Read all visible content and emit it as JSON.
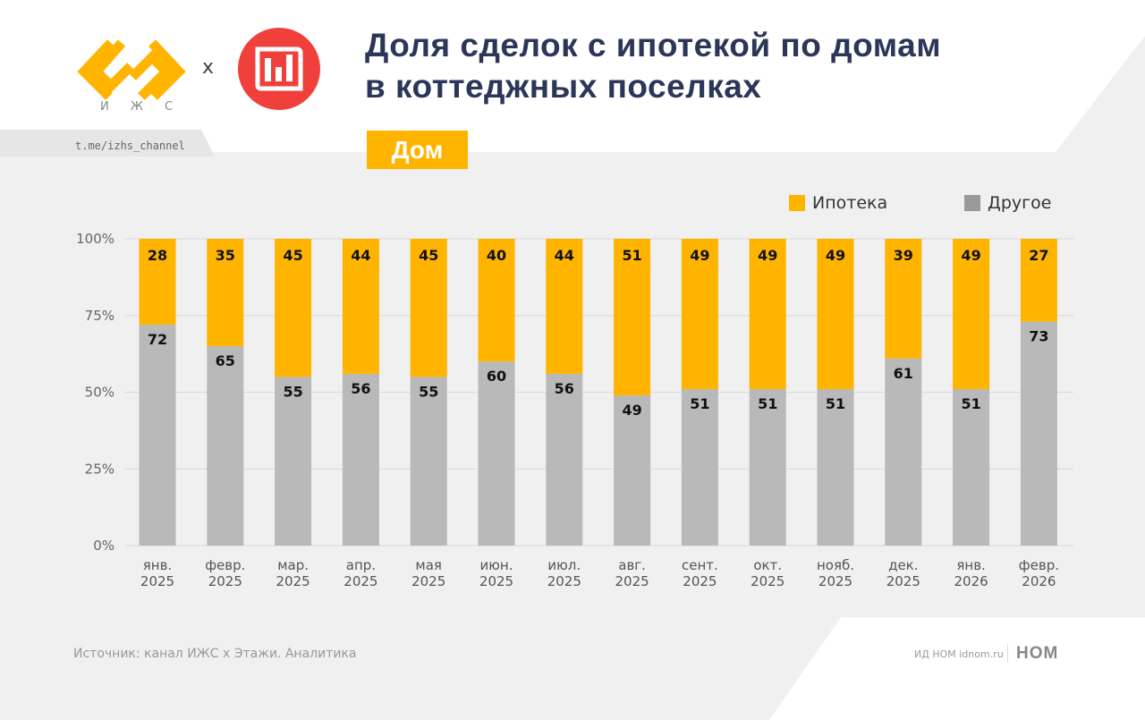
{
  "header": {
    "title_line1": "Доля сделок с ипотекой по домам",
    "title_line2": "в коттеджных поселках",
    "badge": "Дом",
    "channel_link": "t.me/izhs_channel",
    "logo_izhs_label": "И Ж С",
    "logo_separator": "x",
    "logo_izhs_icon": "izhs-logo-icon",
    "logo_partner_icon": "etazhi-analytics-logo-icon"
  },
  "colors": {
    "mortgage": "#ffb400",
    "other": "#b9b9b9",
    "title": "#2b3659",
    "partner_logo": "#f0403c"
  },
  "footer": {
    "source": "Источник: канал ИЖС х Этажи. Аналитика",
    "publisher": "ИД НОМ idnom.ru",
    "publisher_logo": "НОМ"
  },
  "chart_data": {
    "type": "bar",
    "stacked": true,
    "title": "Доля сделок с ипотекой по домам в коттеджных поселках",
    "xlabel": "",
    "ylabel": "",
    "ylim": [
      0,
      100
    ],
    "yticks": [
      "0%",
      "25%",
      "50%",
      "75%",
      "100%"
    ],
    "grid": true,
    "legend_position": "top-right",
    "categories": [
      [
        "янв.",
        "2025"
      ],
      [
        "февр.",
        "2025"
      ],
      [
        "мар.",
        "2025"
      ],
      [
        "апр.",
        "2025"
      ],
      [
        "мая",
        "2025"
      ],
      [
        "июн.",
        "2025"
      ],
      [
        "июл.",
        "2025"
      ],
      [
        "авг.",
        "2025"
      ],
      [
        "сент.",
        "2025"
      ],
      [
        "окт.",
        "2025"
      ],
      [
        "нояб.",
        "2025"
      ],
      [
        "дек.",
        "2025"
      ],
      [
        "янв.",
        "2026"
      ],
      [
        "февр.",
        "2026"
      ]
    ],
    "series": [
      {
        "name": "Другое",
        "color": "#b9b9b9",
        "values": [
          72,
          65,
          55,
          56,
          55,
          60,
          56,
          49,
          51,
          51,
          51,
          61,
          51,
          73
        ]
      },
      {
        "name": "Ипотека",
        "color": "#ffb400",
        "values": [
          28,
          35,
          45,
          44,
          45,
          40,
          44,
          51,
          49,
          49,
          49,
          39,
          49,
          27
        ]
      }
    ]
  }
}
